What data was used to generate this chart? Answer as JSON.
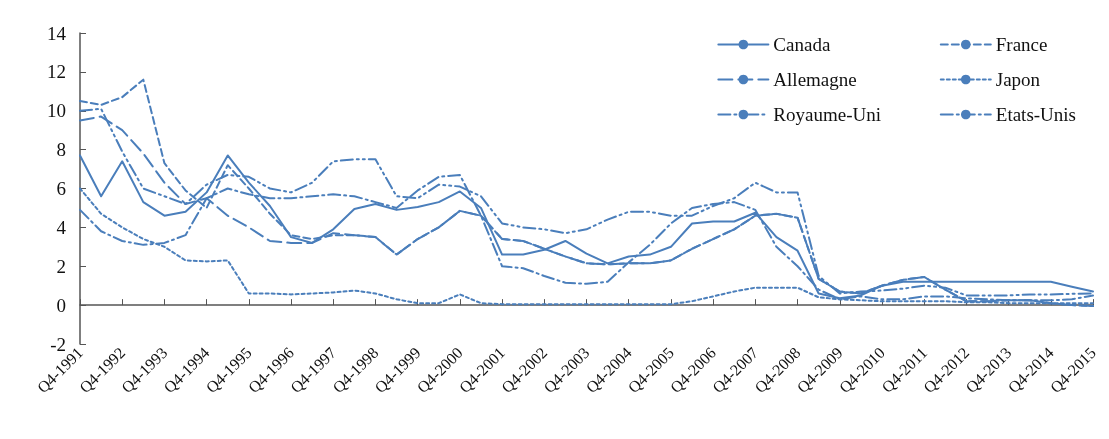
{
  "chart_data": {
    "type": "line",
    "categories": [
      "Q4-1991",
      null,
      "Q4-1992",
      null,
      "Q4-1993",
      null,
      "Q4-1994",
      null,
      "Q4-1995",
      null,
      "Q4-1996",
      null,
      "Q4-1997",
      null,
      "Q4-1998",
      null,
      "Q4-1999",
      null,
      "Q4-2000",
      null,
      "Q4-2001",
      null,
      "Q4-2002",
      null,
      "Q4-2003",
      null,
      "Q4-2004",
      null,
      "Q4-2005",
      null,
      "Q4-2006",
      null,
      "Q4-2007",
      null,
      "Q4-2008",
      null,
      "Q4-2009",
      null,
      "Q4-2010",
      null,
      "Q4-2011",
      null,
      "Q4-2012",
      null,
      "Q4-2013",
      null,
      "Q4-2014",
      null,
      "Q4-2015"
    ],
    "series": [
      {
        "name": "Canada",
        "color": "#4a7ebb",
        "line_style": "solid",
        "values": [
          7.7,
          5.6,
          7.4,
          5.3,
          4.6,
          4.8,
          5.8,
          7.7,
          6.3,
          5.1,
          3.5,
          3.2,
          3.9,
          4.95,
          5.2,
          4.9,
          5.05,
          5.3,
          5.85,
          5.0,
          2.6,
          2.6,
          2.85,
          3.3,
          2.65,
          2.15,
          2.5,
          2.6,
          3.0,
          4.2,
          4.3,
          4.3,
          4.75,
          3.5,
          2.8,
          0.6,
          0.35,
          0.5,
          1.0,
          1.2,
          1.2,
          1.2,
          1.2,
          1.2,
          1.2,
          1.2,
          1.2,
          0.95,
          0.7
        ]
      },
      {
        "name": "France",
        "color": "#4a7ebb",
        "line_style": "dashed",
        "values": [
          10.5,
          10.3,
          10.7,
          11.6,
          7.3,
          5.9,
          5.0,
          7.2,
          6.0,
          4.7,
          3.6,
          3.4,
          3.6,
          3.6,
          3.5,
          2.6,
          3.4,
          4.0,
          4.85,
          4.6,
          3.4,
          3.3,
          2.9,
          2.5,
          2.15,
          2.1,
          2.15,
          2.15,
          2.3,
          2.9,
          3.4,
          3.9,
          4.6,
          4.7,
          4.5,
          1.35,
          0.7,
          0.6,
          1.0,
          1.3,
          1.45,
          0.8,
          0.2,
          0.2,
          0.25,
          0.25,
          0.1,
          0.0,
          -0.05
        ]
      },
      {
        "name": "Allemagne",
        "color": "#4a7ebb",
        "line_style": "longdash",
        "values": [
          9.5,
          9.7,
          9.0,
          7.8,
          6.3,
          5.2,
          5.5,
          4.6,
          4.0,
          3.3,
          3.2,
          3.2,
          3.7,
          3.6,
          3.5,
          2.6,
          3.4,
          4.0,
          4.85,
          4.6,
          3.4,
          3.3,
          2.9,
          2.5,
          2.15,
          2.1,
          2.15,
          2.15,
          2.3,
          2.9,
          3.4,
          3.9,
          4.6,
          4.7,
          4.5,
          1.35,
          0.7,
          0.6,
          1.0,
          1.3,
          1.45,
          0.8,
          0.2,
          0.2,
          0.25,
          0.25,
          0.1,
          0.0,
          -0.05
        ]
      },
      {
        "name": "Japon",
        "color": "#4a7ebb",
        "line_style": "dotted",
        "values": [
          6.0,
          4.7,
          4.0,
          3.4,
          3.0,
          2.3,
          2.25,
          2.3,
          0.6,
          0.6,
          0.55,
          0.6,
          0.65,
          0.75,
          0.6,
          0.3,
          0.1,
          0.1,
          0.55,
          0.1,
          0.05,
          0.05,
          0.05,
          0.05,
          0.05,
          0.05,
          0.05,
          0.05,
          0.05,
          0.2,
          0.45,
          0.7,
          0.9,
          0.9,
          0.9,
          0.4,
          0.3,
          0.25,
          0.2,
          0.2,
          0.2,
          0.2,
          0.15,
          0.15,
          0.1,
          0.1,
          0.1,
          0.1,
          0.1
        ]
      },
      {
        "name": "Royaume-Uni",
        "color": "#4a7ebb",
        "line_style": "dashdotdot",
        "values": [
          10.0,
          10.1,
          7.9,
          6.0,
          5.6,
          5.2,
          6.2,
          6.7,
          6.6,
          6.0,
          5.8,
          6.3,
          7.4,
          7.5,
          7.5,
          5.6,
          5.5,
          6.2,
          6.1,
          5.6,
          4.2,
          4.0,
          3.9,
          3.7,
          3.9,
          4.4,
          4.8,
          4.8,
          4.6,
          4.6,
          5.1,
          5.5,
          6.3,
          5.8,
          5.8,
          1.5,
          0.6,
          0.7,
          0.75,
          0.85,
          1.0,
          0.9,
          0.5,
          0.5,
          0.5,
          0.55,
          0.55,
          0.58,
          0.6
        ]
      },
      {
        "name": "Etats-Unis",
        "color": "#4a7ebb",
        "line_style": "dashdot",
        "values": [
          4.9,
          3.8,
          3.3,
          3.1,
          3.2,
          3.6,
          5.5,
          6.0,
          5.7,
          5.5,
          5.5,
          5.6,
          5.7,
          5.6,
          5.3,
          5.0,
          5.9,
          6.6,
          6.7,
          4.6,
          2.0,
          1.9,
          1.5,
          1.15,
          1.1,
          1.2,
          2.2,
          3.1,
          4.2,
          5.0,
          5.2,
          5.3,
          4.9,
          3.0,
          2.0,
          0.8,
          0.3,
          0.45,
          0.3,
          0.3,
          0.45,
          0.45,
          0.35,
          0.3,
          0.25,
          0.25,
          0.25,
          0.3,
          0.5
        ]
      }
    ],
    "ylim": [
      -2,
      14
    ],
    "yticks": [
      -2,
      0,
      2,
      4,
      6,
      8,
      10,
      12,
      14
    ],
    "grid": false,
    "legend": "top right",
    "marker": "none"
  }
}
